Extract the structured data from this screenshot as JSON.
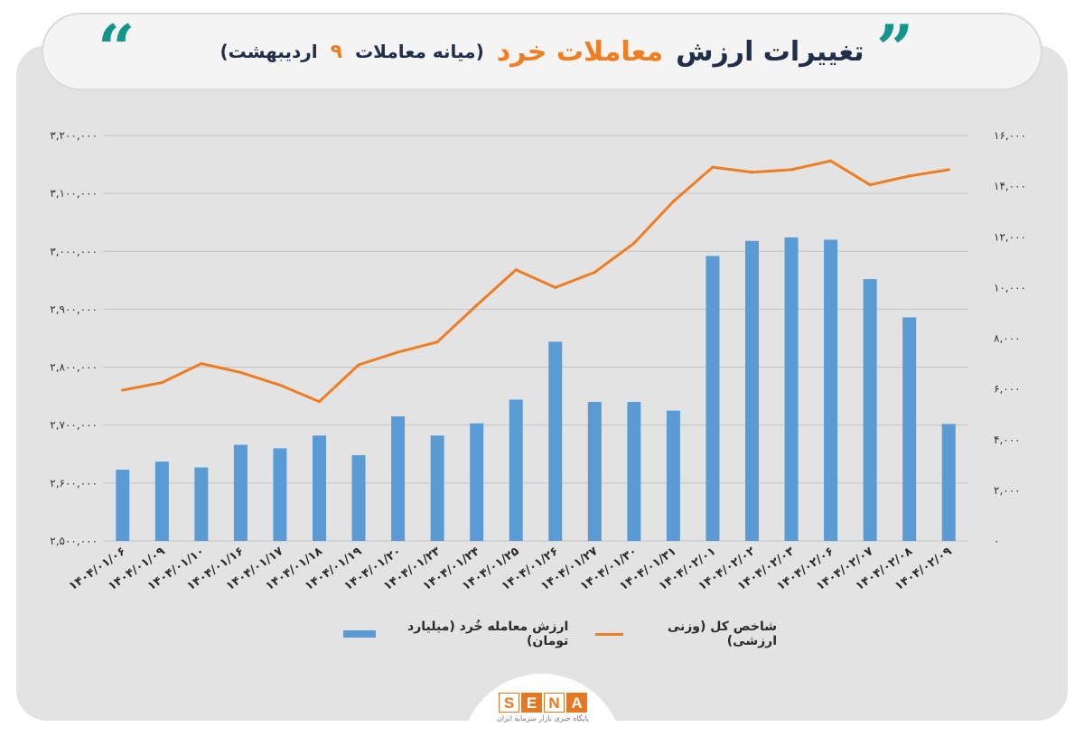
{
  "header": {
    "title_part1": "تغییرات ارزش",
    "title_part2": "معاملات خرد",
    "subtitle_pre": "(میانه معاملات",
    "subtitle_num": "۹",
    "subtitle_post": "اردیبهشت)"
  },
  "logo": {
    "letters": [
      "S",
      "E",
      "N",
      "A"
    ],
    "tagline": "پایگاه خبری بازار سرمایه ایران"
  },
  "colors": {
    "bar": "#5b9bd5",
    "line": "#ef7d22",
    "accent": "#16958c",
    "title": "#1f2f4a"
  },
  "chart_data": {
    "type": "bar",
    "categories": [
      "۱۴۰۴/۰۱/۰۶",
      "۱۴۰۴/۰۱/۰۹",
      "۱۴۰۴/۰۱/۱۰",
      "۱۴۰۴/۰۱/۱۶",
      "۱۴۰۴/۰۱/۱۷",
      "۱۴۰۴/۰۱/۱۸",
      "۱۴۰۴/۰۱/۱۹",
      "۱۴۰۴/۰۱/۲۰",
      "۱۴۰۴/۰۱/۲۳",
      "۱۴۰۴/۰۱/۲۴",
      "۱۴۰۴/۰۱/۲۵",
      "۱۴۰۴/۰۱/۲۶",
      "۱۴۰۴/۰۱/۲۷",
      "۱۴۰۴/۰۱/۳۰",
      "۱۴۰۴/۰۱/۳۱",
      "۱۴۰۴/۰۲/۰۱",
      "۱۴۰۴/۰۲/۰۲",
      "۱۴۰۴/۰۲/۰۳",
      "۱۴۰۴/۰۲/۰۶",
      "۱۴۰۴/۰۲/۰۷",
      "۱۴۰۴/۰۲/۰۸",
      "۱۴۰۴/۰۲/۰۹"
    ],
    "series": [
      {
        "name": "ارزش معامله خُرد (میلیارد تومان)",
        "type": "bar",
        "axis": "left",
        "values": [
          2623000,
          2637000,
          2627000,
          2666000,
          2660000,
          2682000,
          2648000,
          2715000,
          2682000,
          2703000,
          2744000,
          2844000,
          2740000,
          2740000,
          2725000,
          2992000,
          3018000,
          3024000,
          3020000,
          2952000,
          2886000,
          2702000
        ]
      },
      {
        "name": "شاخص کل (وزنی ارزشی)",
        "type": "line",
        "axis": "right",
        "values": [
          5950,
          6250,
          7000,
          6650,
          6150,
          5500,
          6950,
          7450,
          7850,
          9300,
          10700,
          10000,
          10600,
          11750,
          13400,
          14750,
          14550,
          14650,
          15000,
          14050,
          14400,
          14650
        ]
      }
    ],
    "yleft": {
      "ticks": [
        "۳,۲۰۰,۰۰۰",
        "۳,۱۰۰,۰۰۰",
        "۳,۰۰۰,۰۰۰",
        "۲,۹۰۰,۰۰۰",
        "۲,۸۰۰,۰۰۰",
        "۲,۷۰۰,۰۰۰",
        "۲,۶۰۰,۰۰۰",
        "۲,۵۰۰,۰۰۰"
      ],
      "min": 2500000,
      "max": 3200000
    },
    "yright": {
      "ticks": [
        "۱۶,۰۰۰",
        "۱۴,۰۰۰",
        "۱۲,۰۰۰",
        "۱۰,۰۰۰",
        "۸,۰۰۰",
        "۶,۰۰۰",
        "۴,۰۰۰",
        "۲,۰۰۰",
        "۰"
      ],
      "min": 0,
      "max": 16000
    },
    "grid": true,
    "legend": "bottom"
  }
}
